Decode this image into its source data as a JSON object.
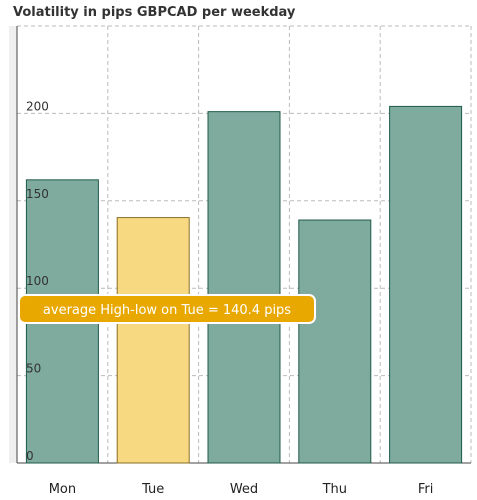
{
  "chart_data": {
    "type": "bar",
    "title": "Volatility in pips GBPCAD per weekday",
    "categories": [
      "Mon",
      "Tue",
      "Wed",
      "Thu",
      "Fri"
    ],
    "values": [
      162,
      140.4,
      201,
      139,
      204
    ],
    "highlighted_index": 1,
    "ylim": [
      0,
      250
    ],
    "yticks": [
      0,
      50,
      100,
      150,
      200
    ],
    "xlabel": "",
    "ylabel": "",
    "grid": true,
    "grid_style": "dashed",
    "colors": {
      "bar": "#7fab9f",
      "bar_border": "#1f5a47",
      "highlight": "#f7d982",
      "highlight_border": "#8a6e25",
      "tooltip": "#e9a800",
      "grid": "#bbbbbb"
    },
    "tooltip": "average High-low on Tue = 140.4 pips"
  }
}
